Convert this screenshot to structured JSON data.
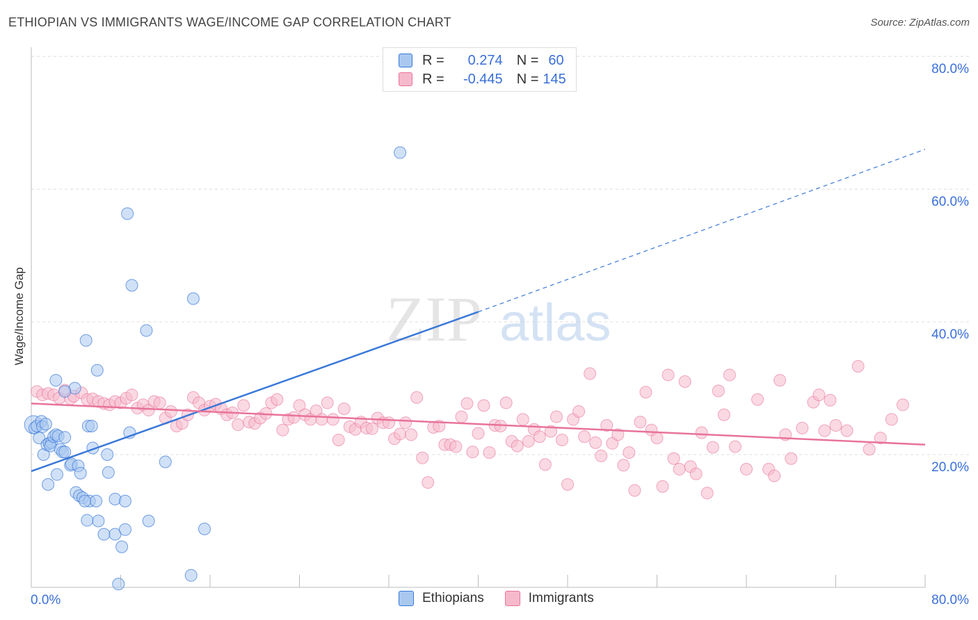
{
  "title": "ETHIOPIAN VS IMMIGRANTS WAGE/INCOME GAP CORRELATION CHART",
  "source": "Source: ZipAtlas.com",
  "watermark": {
    "zip": "ZIP",
    "atlas": "atlas"
  },
  "legend": {
    "rows": [
      {
        "r_label": "R =",
        "r_value": "0.274",
        "n_label": "N =",
        "n_value": "60"
      },
      {
        "r_label": "R =",
        "r_value": "-0.445",
        "n_label": "N =",
        "n_value": "145"
      }
    ]
  },
  "bottom_legend": {
    "ethiopians": "Ethiopians",
    "immigrants": "Immigrants"
  },
  "colors": {
    "blue": "#3a78d8",
    "blue_fill": "#a9c8f0",
    "pink": "#e8739a",
    "pink_fill": "#f6b9cc",
    "axis_text": "#3a6fd8"
  },
  "chart_data": {
    "type": "scatter",
    "ylabel": "Wage/Income Gap",
    "xlabel": "",
    "x_tick_labels": [
      "0.0%",
      "80.0%"
    ],
    "y_tick_labels": [
      "20.0%",
      "40.0%",
      "60.0%",
      "80.0%"
    ],
    "xlim": [
      0,
      80
    ],
    "ylim": [
      0,
      82
    ],
    "grid": true,
    "series": [
      {
        "name": "Ethiopians",
        "points": [
          [
            0.2,
            24.5
          ],
          [
            0.3,
            24
          ],
          [
            0.5,
            24.3
          ],
          [
            0.7,
            22.5
          ],
          [
            0.9,
            25
          ],
          [
            1,
            24.2
          ],
          [
            1.3,
            24.6
          ],
          [
            1.1,
            20
          ],
          [
            1.4,
            21.5
          ],
          [
            1.6,
            21.7
          ],
          [
            1.8,
            21.8
          ],
          [
            1.7,
            21.3
          ],
          [
            2,
            22.7
          ],
          [
            2.2,
            23
          ],
          [
            2.4,
            22.8
          ],
          [
            2.6,
            20.8
          ],
          [
            2.8,
            20.4
          ],
          [
            3,
            20.4
          ],
          [
            3,
            22.6
          ],
          [
            2.2,
            31.2
          ],
          [
            2.3,
            17
          ],
          [
            3.5,
            18.4
          ],
          [
            3.6,
            18.6
          ],
          [
            3.9,
            30
          ],
          [
            4.2,
            18.3
          ],
          [
            4.4,
            17.2
          ],
          [
            4,
            14.3
          ],
          [
            4.3,
            13.8
          ],
          [
            4.6,
            13.5
          ],
          [
            5.2,
            13
          ],
          [
            4.8,
            13
          ],
          [
            5.1,
            24.3
          ],
          [
            5.4,
            24.3
          ],
          [
            5.5,
            21
          ],
          [
            5.9,
            32.7
          ],
          [
            5.8,
            13
          ],
          [
            6,
            10
          ],
          [
            6.5,
            8
          ],
          [
            6.8,
            20
          ],
          [
            6.9,
            17.3
          ],
          [
            7.5,
            8
          ],
          [
            7.5,
            13.3
          ],
          [
            8.4,
            13
          ],
          [
            8.8,
            23.3
          ],
          [
            8.6,
            56.3
          ],
          [
            8.4,
            8.7
          ],
          [
            8.1,
            6.1
          ],
          [
            9,
            45.5
          ],
          [
            10.3,
            38.7
          ],
          [
            10.5,
            10
          ],
          [
            12,
            18.9
          ],
          [
            14.5,
            43.5
          ],
          [
            15.5,
            8.8
          ],
          [
            14.3,
            1.8
          ],
          [
            33,
            65.5
          ],
          [
            1.5,
            15.5
          ],
          [
            3,
            29.5
          ],
          [
            4.9,
            37.2
          ],
          [
            7.8,
            0.5
          ],
          [
            5,
            10.1
          ]
        ],
        "trend": {
          "x": [
            0,
            40
          ],
          "y": [
            17.5,
            41.5
          ]
        },
        "trend_extension": {
          "x": [
            40,
            80
          ],
          "y": [
            41.5,
            66
          ]
        }
      },
      {
        "name": "Immigrants",
        "points": [
          [
            0.5,
            29.5
          ],
          [
            1,
            29
          ],
          [
            1.5,
            29.2
          ],
          [
            2,
            29
          ],
          [
            2.5,
            28.5
          ],
          [
            3,
            29.7
          ],
          [
            3.5,
            28.4
          ],
          [
            3.8,
            28.8
          ],
          [
            4.5,
            29.3
          ],
          [
            5,
            28.3
          ],
          [
            5.5,
            28.4
          ],
          [
            6,
            28
          ],
          [
            6.5,
            27.7
          ],
          [
            7,
            27.5
          ],
          [
            7.5,
            28
          ],
          [
            8,
            27.8
          ],
          [
            8.5,
            28.5
          ],
          [
            9,
            29
          ],
          [
            9.5,
            27
          ],
          [
            10,
            27.5
          ],
          [
            10.5,
            26.7
          ],
          [
            11,
            28
          ],
          [
            11.5,
            27.8
          ],
          [
            12,
            25.5
          ],
          [
            12.5,
            26.5
          ],
          [
            13,
            24.3
          ],
          [
            13.5,
            24.7
          ],
          [
            14,
            26
          ],
          [
            14.5,
            28.6
          ],
          [
            15,
            27.8
          ],
          [
            15.5,
            26.7
          ],
          [
            16,
            27.3
          ],
          [
            16.5,
            27.6
          ],
          [
            17,
            26.9
          ],
          [
            17.5,
            26
          ],
          [
            18,
            26.3
          ],
          [
            18.5,
            24.5
          ],
          [
            19,
            27.4
          ],
          [
            19.5,
            24.9
          ],
          [
            20,
            24.7
          ],
          [
            20.5,
            25.5
          ],
          [
            21,
            26.2
          ],
          [
            21.5,
            27.8
          ],
          [
            22,
            28.3
          ],
          [
            22.5,
            23.7
          ],
          [
            23,
            25.3
          ],
          [
            23.5,
            25.6
          ],
          [
            24,
            27.4
          ],
          [
            24.5,
            26
          ],
          [
            25,
            25.3
          ],
          [
            25.5,
            26.6
          ],
          [
            26,
            25.3
          ],
          [
            26.5,
            27.8
          ],
          [
            27,
            25.3
          ],
          [
            27.5,
            22.2
          ],
          [
            28,
            26.9
          ],
          [
            28.5,
            24.2
          ],
          [
            29,
            23.8
          ],
          [
            29.5,
            24.9
          ],
          [
            30,
            24
          ],
          [
            30.5,
            23.9
          ],
          [
            31,
            25.5
          ],
          [
            31.5,
            24.8
          ],
          [
            32,
            24.8
          ],
          [
            32.5,
            22.4
          ],
          [
            33,
            23.1
          ],
          [
            33.5,
            24.8
          ],
          [
            34,
            23
          ],
          [
            34.5,
            28.6
          ],
          [
            35,
            19.5
          ],
          [
            35.5,
            15.8
          ],
          [
            36,
            24.1
          ],
          [
            36.5,
            24.3
          ],
          [
            37,
            21.5
          ],
          [
            37.5,
            21.5
          ],
          [
            38,
            21.2
          ],
          [
            38.5,
            25.7
          ],
          [
            39,
            27.7
          ],
          [
            39.5,
            20.4
          ],
          [
            40,
            23.2
          ],
          [
            40.5,
            27.4
          ],
          [
            41,
            20.3
          ],
          [
            41.5,
            24.4
          ],
          [
            42,
            24.3
          ],
          [
            42.5,
            27.8
          ],
          [
            43,
            22
          ],
          [
            43.5,
            21.3
          ],
          [
            44,
            25.3
          ],
          [
            44.5,
            22
          ],
          [
            45,
            23.8
          ],
          [
            45.5,
            22.7
          ],
          [
            46,
            18.5
          ],
          [
            46.5,
            23.5
          ],
          [
            47,
            25.7
          ],
          [
            47.5,
            22.2
          ],
          [
            48,
            15.5
          ],
          [
            48.5,
            25.3
          ],
          [
            49,
            26.5
          ],
          [
            49.5,
            22.7
          ],
          [
            50,
            32.2
          ],
          [
            50.5,
            21.8
          ],
          [
            51,
            19.8
          ],
          [
            51.5,
            24.4
          ],
          [
            52,
            21.7
          ],
          [
            52.5,
            23
          ],
          [
            53,
            18.4
          ],
          [
            53.5,
            20.3
          ],
          [
            54,
            14.6
          ],
          [
            54.5,
            24.9
          ],
          [
            55,
            29.4
          ],
          [
            55.5,
            23.7
          ],
          [
            56,
            22.5
          ],
          [
            56.5,
            15.2
          ],
          [
            57,
            32
          ],
          [
            57.5,
            19.4
          ],
          [
            58,
            17.8
          ],
          [
            58.5,
            31
          ],
          [
            59,
            18.2
          ],
          [
            59.5,
            17.1
          ],
          [
            60,
            23.3
          ],
          [
            60.5,
            14.2
          ],
          [
            61,
            21.1
          ],
          [
            61.5,
            29.6
          ],
          [
            62,
            26
          ],
          [
            62.5,
            32
          ],
          [
            63,
            21.2
          ],
          [
            64,
            17.8
          ],
          [
            65,
            28.3
          ],
          [
            66,
            17.8
          ],
          [
            67,
            31.2
          ],
          [
            67.5,
            23
          ],
          [
            68,
            19.4
          ],
          [
            69,
            24
          ],
          [
            70,
            27.9
          ],
          [
            70.5,
            29
          ],
          [
            71,
            23.6
          ],
          [
            71.5,
            28.2
          ],
          [
            73,
            23.6
          ],
          [
            75,
            20.8
          ],
          [
            78,
            27.5
          ],
          [
            74,
            33.3
          ],
          [
            66.5,
            16.8
          ],
          [
            72,
            24.4
          ],
          [
            76,
            22.5
          ],
          [
            77,
            25.3
          ]
        ],
        "trend": {
          "x": [
            0,
            80
          ],
          "y": [
            27.7,
            21.5
          ]
        }
      }
    ]
  }
}
